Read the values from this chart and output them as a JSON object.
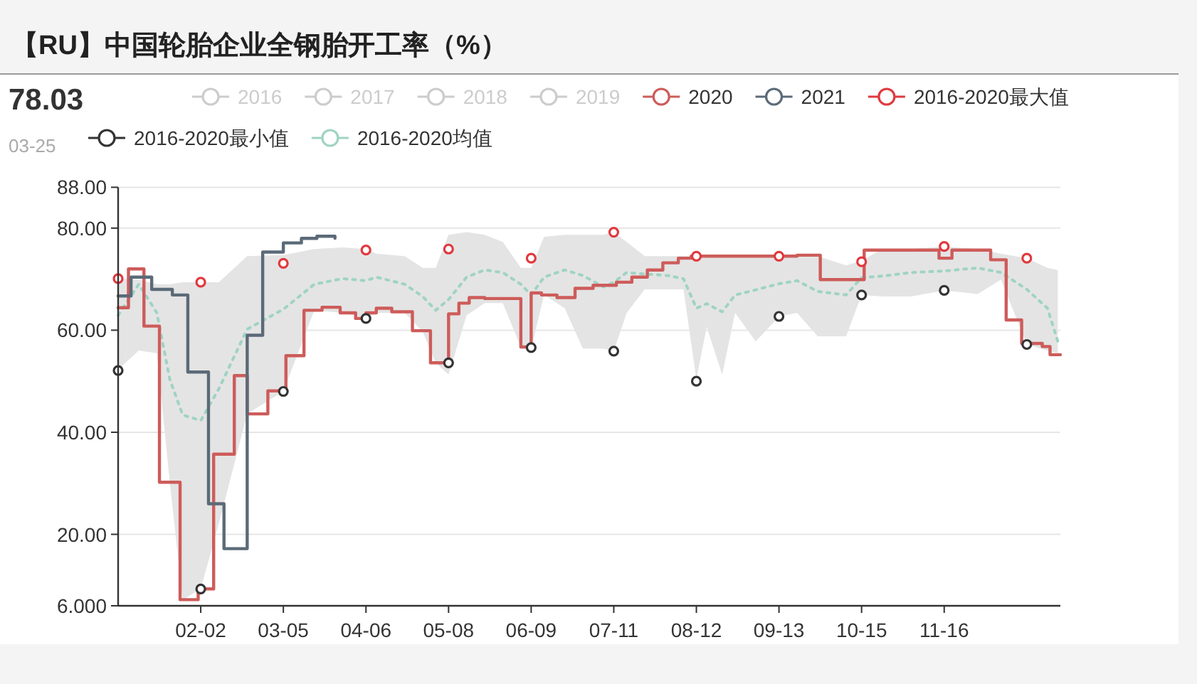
{
  "chart_data": {
    "type": "line",
    "title": "【RU】中国轮胎企业全钢胎开工率（%）",
    "annotations": [
      "78.03",
      "03-25"
    ],
    "xlim": [
      "--01-01",
      "--12-31"
    ],
    "xticks": [
      {
        "value": "--02-02",
        "label": "02-02"
      },
      {
        "value": "--03-05",
        "label": "03-05"
      },
      {
        "value": "--04-06",
        "label": "04-06"
      },
      {
        "value": "--05-08",
        "label": "05-08"
      },
      {
        "value": "--06-09",
        "label": "06-09"
      },
      {
        "value": "--07-11",
        "label": "07-11"
      },
      {
        "value": "--08-12",
        "label": "08-12"
      },
      {
        "value": "--09-13",
        "label": "09-13"
      },
      {
        "value": "--10-15",
        "label": "10-15"
      },
      {
        "value": "--11-16",
        "label": "11-16"
      }
    ],
    "ylim": [
      6,
      88
    ],
    "yticks": [
      {
        "value": 6,
        "label": "6.000"
      },
      {
        "value": 20,
        "label": "20.00"
      },
      {
        "value": 40,
        "label": "40.00"
      },
      {
        "value": 60,
        "label": "60.00"
      },
      {
        "value": 80,
        "label": "80.00"
      },
      {
        "value": 88,
        "label": "88.00"
      }
    ],
    "grid": "y",
    "legend": "top",
    "series": [
      {
        "name": "2016",
        "color": "#cccccc"
      },
      {
        "name": "2017",
        "color": "#cccccc"
      },
      {
        "name": "2018",
        "color": "#cccccc"
      },
      {
        "name": "2019",
        "color": "#cccccc"
      },
      {
        "name": "2020",
        "color": "#cd5c5a",
        "type": "step",
        "x": [
          "--01-01",
          "--01-05",
          "--01-11",
          "--01-17",
          "--01-25",
          "--02-01",
          "--02-07",
          "--02-15",
          "--02-20",
          "--02-28",
          "--03-06",
          "--03-13",
          "--03-20",
          "--03-27",
          "--04-02",
          "--04-06",
          "--04-10",
          "--04-16",
          "--04-24",
          "--05-01",
          "--05-08",
          "--05-12",
          "--05-16",
          "--05-22",
          "--06-05",
          "--06-09",
          "--06-13",
          "--06-19",
          "--06-26",
          "--07-03",
          "--07-12",
          "--07-18",
          "--07-24",
          "--07-30",
          "--08-05",
          "--08-10",
          "--09-20",
          "--09-29",
          "--10-16",
          "--11-14",
          "--11-19",
          "--12-04",
          "--12-10",
          "--12-16",
          "--12-24",
          "--12-27",
          "--12-31"
        ],
        "values": [
          64.4,
          72,
          60.8,
          30.2,
          7.2,
          9.3,
          35.7,
          51.1,
          43.6,
          48.1,
          55,
          63.9,
          64.5,
          63.4,
          62.3,
          63.4,
          64.3,
          63.6,
          59.9,
          53.6,
          63.2,
          65.3,
          66.4,
          66.2,
          56.7,
          67.3,
          66.9,
          66.4,
          68.2,
          68.8,
          69.4,
          70.4,
          71.8,
          73.2,
          74.1,
          74.5,
          74.7,
          69.9,
          75.7,
          74.1,
          75.7,
          73.8,
          62,
          57.4,
          56.8,
          55.2,
          55.2
        ]
      },
      {
        "name": "2021",
        "color": "#5b6a78",
        "type": "step",
        "x": [
          "--01-01",
          "--01-06",
          "--01-14",
          "--01-22",
          "--01-28",
          "--02-05",
          "--02-11",
          "--02-20",
          "--02-26",
          "--03-05",
          "--03-12",
          "--03-18",
          "--03-25"
        ],
        "values": [
          66.7,
          70.4,
          68,
          66.9,
          51.8,
          26,
          17.2,
          59,
          75.3,
          77.1,
          78,
          78.4,
          78.03
        ]
      },
      {
        "name": "2016-2020最大值",
        "color": "#e0393e",
        "type": "scatter",
        "marker": "circle",
        "x": [
          "--01-01",
          "--02-02",
          "--03-05",
          "--04-06",
          "--05-08",
          "--06-09",
          "--07-11",
          "--08-12",
          "--09-13",
          "--10-15",
          "--11-16",
          "--12-18"
        ],
        "values": [
          70.1,
          69.4,
          73.1,
          75.7,
          75.9,
          74.1,
          79.2,
          74.5,
          74.5,
          73.4,
          76.4,
          74.1
        ]
      },
      {
        "name": "2016-2020最小值",
        "color": "#333333",
        "type": "scatter",
        "marker": "circle",
        "x": [
          "--01-01",
          "--02-02",
          "--03-05",
          "--04-06",
          "--05-08",
          "--06-09",
          "--07-11",
          "--08-12",
          "--09-13",
          "--10-15",
          "--11-16",
          "--12-18"
        ],
        "values": [
          52.1,
          9.3,
          48,
          62.3,
          53.6,
          56.6,
          55.9,
          50,
          62.7,
          66.9,
          67.8,
          57.2
        ]
      },
      {
        "name": "2016-2020均值",
        "color": "#9fd3c3",
        "line_style": "dotted",
        "x": [
          "--01-01",
          "--01-09",
          "--01-16",
          "--01-21",
          "--01-26",
          "--02-02",
          "--02-09",
          "--02-20",
          "--03-05",
          "--03-17",
          "--03-28",
          "--04-06",
          "--04-10",
          "--04-21",
          "--04-28",
          "--05-03",
          "--05-08",
          "--05-15",
          "--05-22",
          "--05-29",
          "--06-05",
          "--06-09",
          "--06-14",
          "--06-22",
          "--06-29",
          "--07-07",
          "--07-11",
          "--07-16",
          "--07-23",
          "--08-01",
          "--08-07",
          "--08-12",
          "--08-16",
          "--08-22",
          "--08-27",
          "--09-04",
          "--09-13",
          "--09-20",
          "--09-28",
          "--10-09",
          "--10-15",
          "--10-23",
          "--11-03",
          "--11-16",
          "--11-29",
          "--12-08",
          "--12-18",
          "--12-26",
          "--12-30"
        ],
        "values": [
          62.9,
          69,
          63.4,
          50.4,
          43.4,
          42.3,
          48.5,
          60.2,
          64.1,
          69,
          70.1,
          69.7,
          70.4,
          69,
          66.6,
          63.9,
          66,
          70.4,
          71.8,
          71.3,
          69,
          66.9,
          70.4,
          71.8,
          70.7,
          68.5,
          69.4,
          71.3,
          71,
          70.7,
          70.1,
          64.3,
          65.2,
          63.6,
          66.9,
          67.9,
          69.1,
          69.7,
          67.6,
          66.9,
          70.3,
          70.6,
          71.3,
          71.6,
          72.2,
          71.3,
          68,
          64.3,
          57.8
        ],
        "lower": [
          52.3,
          56,
          55.5,
          30.2,
          7.2,
          9.3,
          22.1,
          43.6,
          48,
          63.9,
          63.4,
          62.3,
          63.4,
          63.4,
          59.7,
          53.6,
          51.3,
          62.9,
          65.3,
          65.3,
          56.7,
          56.4,
          66.9,
          64.3,
          56.4,
          56.4,
          55.9,
          63.4,
          68,
          68,
          68,
          50.4,
          60.6,
          51.3,
          63.4,
          57.8,
          62.7,
          63.4,
          58.8,
          58.8,
          66.9,
          66.6,
          66.6,
          67.8,
          67.1,
          69.9,
          57.2,
          56,
          55.5
        ],
        "upper": [
          70.1,
          69.9,
          69,
          69,
          69.4,
          69.4,
          69.4,
          74.5,
          74.7,
          75.9,
          76.2,
          75.9,
          75,
          74.5,
          72.2,
          72.2,
          78.7,
          79.2,
          78.7,
          77.3,
          72.2,
          72.2,
          78.3,
          78.7,
          78.7,
          78.7,
          79.2,
          77.3,
          74.5,
          74.5,
          74.5,
          74.5,
          74.5,
          74.7,
          74.7,
          74.7,
          74.7,
          74.7,
          74.5,
          72.7,
          73.6,
          75.9,
          75.9,
          76.4,
          75.9,
          75,
          74.1,
          72.2,
          71.8
        ]
      }
    ]
  }
}
